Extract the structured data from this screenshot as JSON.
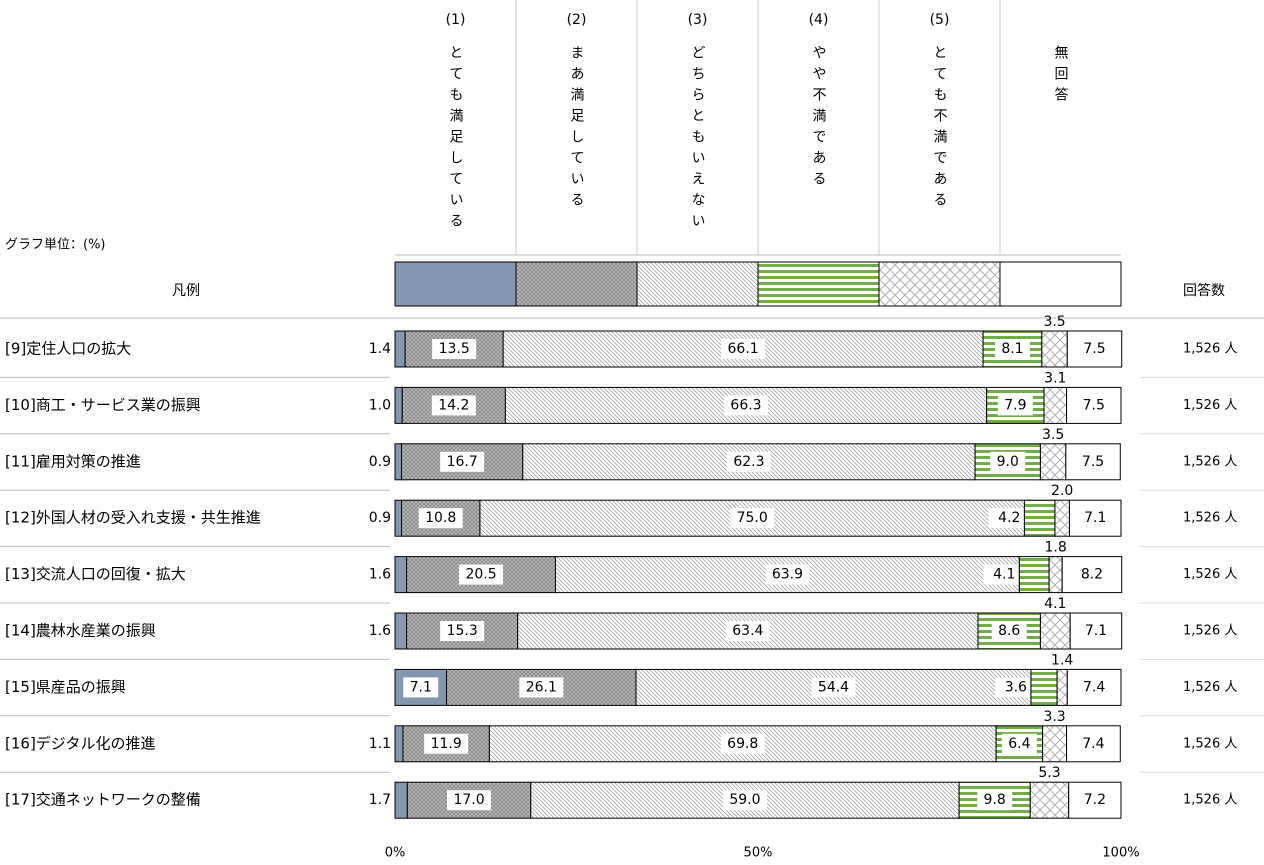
{
  "chart_data": {
    "type": "stacked-bar-100",
    "title": "グラフ単位：(%)",
    "legend_label": "凡例",
    "count_label": "回答数",
    "categories": [
      "[9]定住人口の拡大",
      "[10]商工・サービス業の振興",
      "[11]雇用対策の推進",
      "[12]外国人材の受入れ支援・共生推進",
      "[13]交流人口の回復・拡大",
      "[14]農林水産業の振興",
      "[15]県産品の振興",
      "[16]デジタル化の推進",
      "[17]交通ネットワークの整備"
    ],
    "counts": [
      "1,526 人",
      "1,526 人",
      "1,526 人",
      "1,526 人",
      "1,526 人",
      "1,526 人",
      "1,526 人",
      "1,526 人",
      "1,526 人"
    ],
    "xlim": [
      0,
      100
    ],
    "xticks": [
      {
        "value": 0,
        "label": "0%"
      },
      {
        "value": 50,
        "label": "50%"
      },
      {
        "value": 100,
        "label": "100%"
      }
    ],
    "series": [
      {
        "code": "(1)",
        "name": "とても満足している",
        "color": "#8497b0",
        "values": [
          1.4,
          1.0,
          0.9,
          0.9,
          1.6,
          1.6,
          7.1,
          1.1,
          1.7
        ],
        "value_labels": [
          "1.4",
          "1.0",
          "0.9",
          "0.9",
          "1.6",
          "1.6",
          "7.1",
          "1.1",
          "1.7"
        ]
      },
      {
        "code": "(2)",
        "name": "まあ満足している",
        "color": "#8c8c8c",
        "values": [
          13.5,
          14.2,
          16.7,
          10.8,
          20.5,
          15.3,
          26.1,
          11.9,
          17.0
        ],
        "value_labels": [
          "13.5",
          "14.2",
          "16.7",
          "10.8",
          "20.5",
          "15.3",
          "26.1",
          "11.9",
          "17.0"
        ]
      },
      {
        "code": "(3)",
        "name": "どちらともいえない",
        "color": "#a6a6a6",
        "values": [
          66.1,
          66.3,
          62.3,
          75.0,
          63.9,
          63.4,
          54.4,
          69.8,
          59.0
        ],
        "value_labels": [
          "66.1",
          "66.3",
          "62.3",
          "75.0",
          "63.9",
          "63.4",
          "54.4",
          "69.8",
          "59.0"
        ]
      },
      {
        "code": "(4)",
        "name": "やや不満である",
        "color": "#70ad47",
        "values": [
          8.1,
          7.9,
          9.0,
          4.2,
          4.1,
          8.6,
          3.6,
          6.4,
          9.8
        ],
        "value_labels": [
          "8.1",
          "7.9",
          "9.0",
          "4.2",
          "4.1",
          "8.6",
          "3.6",
          "6.4",
          "9.8"
        ]
      },
      {
        "code": "(5)",
        "name": "とても不満である",
        "color": "#b0b0b0",
        "values": [
          3.5,
          3.1,
          3.5,
          2.0,
          1.8,
          4.1,
          1.4,
          3.3,
          5.3
        ],
        "value_labels": [
          "3.5",
          "3.1",
          "3.5",
          "2.0",
          "1.8",
          "4.1",
          "1.4",
          "3.3",
          "5.3"
        ]
      },
      {
        "name": "無回答",
        "color": "#ffffff",
        "values": [
          7.5,
          7.5,
          7.5,
          7.1,
          8.2,
          7.1,
          7.4,
          7.4,
          7.2
        ],
        "value_labels": [
          "7.5",
          "7.5",
          "7.5",
          "7.1",
          "8.2",
          "7.1",
          "7.4",
          "7.4",
          "7.2"
        ]
      }
    ]
  }
}
